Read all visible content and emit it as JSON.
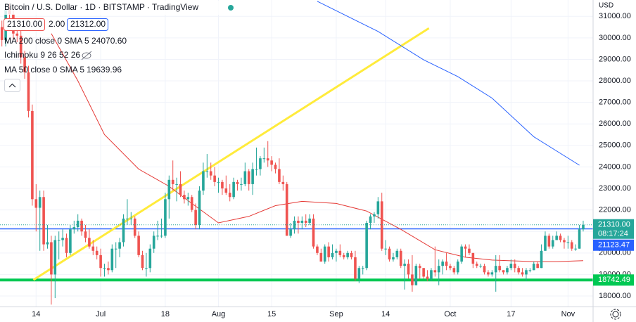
{
  "chart_data": {
    "type": "candlestick",
    "title": "Bitcoin / U.S. Dollar · 1D · BITSTAMP · TradingView",
    "quote": [
      "21310.00",
      "2.00",
      "21312.00"
    ],
    "currency": "USD",
    "up_color": "#26a69a",
    "down_color": "#ef5350",
    "grid": true,
    "xlim": [
      -0.5,
      155.6
    ],
    "ylim": [
      17510,
      31760
    ],
    "xticks": [
      {
        "value": 9,
        "label": "14"
      },
      {
        "value": 26,
        "label": "Jul"
      },
      {
        "value": 43,
        "label": "18"
      },
      {
        "value": 57,
        "label": "Aug"
      },
      {
        "value": 71,
        "label": "15"
      },
      {
        "value": 88,
        "label": "Sep"
      },
      {
        "value": 101,
        "label": "14"
      },
      {
        "value": 118,
        "label": "Oct"
      },
      {
        "value": 134,
        "label": "17"
      },
      {
        "value": 149,
        "label": "Nov"
      }
    ],
    "yticks": [
      {
        "value": 18000,
        "label": "18000.00"
      },
      {
        "value": 19000,
        "label": "19000.00"
      },
      {
        "value": 20000,
        "label": "20000.00"
      },
      {
        "value": 21000,
        "label": "21000.00"
      },
      {
        "value": 22000,
        "label": "22000.00"
      },
      {
        "value": 23000,
        "label": "23000.00"
      },
      {
        "value": 24000,
        "label": "24000.00"
      },
      {
        "value": 25000,
        "label": "25000.00"
      },
      {
        "value": 26000,
        "label": "26000.00"
      },
      {
        "value": 27000,
        "label": "27000.00"
      },
      {
        "value": 28000,
        "label": "28000.00"
      },
      {
        "value": 29000,
        "label": "29000.00"
      },
      {
        "value": 30000,
        "label": "30000.00"
      },
      {
        "value": 31000,
        "label": "31000.00"
      }
    ],
    "candles": [
      [
        30500,
        30800,
        29600,
        29900
      ],
      [
        29900,
        31600,
        29600,
        31300
      ],
      [
        31300,
        31600,
        30800,
        31100
      ],
      [
        31100,
        31400,
        29900,
        30200
      ],
      [
        30200,
        30500,
        29800,
        30100
      ],
      [
        30100,
        30400,
        28800,
        29100
      ],
      [
        29100,
        29400,
        28100,
        28400
      ],
      [
        28400,
        28700,
        26300,
        26600
      ],
      [
        26600,
        26900,
        22200,
        22500
      ],
      [
        22500,
        23200,
        21000,
        22100
      ],
      [
        22100,
        22900,
        20100,
        22600
      ],
      [
        22600,
        22900,
        20100,
        20400
      ],
      [
        20400,
        21300,
        20200,
        20500
      ],
      [
        20500,
        20800,
        17600,
        19000
      ],
      [
        19000,
        20800,
        17900,
        20600
      ],
      [
        20600,
        21000,
        19700,
        20600
      ],
      [
        20600,
        21100,
        20300,
        20700
      ],
      [
        20700,
        20900,
        19800,
        20000
      ],
      [
        20000,
        21300,
        19900,
        21100
      ],
      [
        21100,
        21500,
        20900,
        21200
      ],
      [
        21200,
        21800,
        21000,
        21500
      ],
      [
        21500,
        21600,
        20800,
        21000
      ],
      [
        21000,
        21300,
        20500,
        20700
      ],
      [
        20700,
        21100,
        20200,
        20300
      ],
      [
        20300,
        20600,
        19900,
        20100
      ],
      [
        20100,
        20300,
        19700,
        19900
      ],
      [
        19900,
        20200,
        18900,
        19300
      ],
      [
        19300,
        19500,
        18900,
        19300
      ],
      [
        19300,
        19600,
        19000,
        19200
      ],
      [
        19200,
        20400,
        19100,
        20200
      ],
      [
        20200,
        20500,
        19300,
        20200
      ],
      [
        20200,
        20700,
        19800,
        20500
      ],
      [
        20500,
        21800,
        20300,
        21600
      ],
      [
        21600,
        22500,
        21300,
        21600
      ],
      [
        21600,
        21900,
        21300,
        21600
      ],
      [
        21600,
        21700,
        20700,
        20800
      ],
      [
        20800,
        21000,
        19800,
        19900
      ],
      [
        19900,
        20100,
        19200,
        19300
      ],
      [
        19300,
        20000,
        18900,
        19300
      ],
      [
        19300,
        20400,
        19100,
        20200
      ],
      [
        20200,
        21000,
        20000,
        20800
      ],
      [
        20800,
        21500,
        20600,
        20800
      ],
      [
        20800,
        21600,
        20700,
        20800
      ],
      [
        20800,
        22800,
        20700,
        22500
      ],
      [
        22500,
        23600,
        21600,
        23400
      ],
      [
        23400,
        24300,
        22900,
        23200
      ],
      [
        23200,
        23500,
        22400,
        23200
      ],
      [
        23200,
        23800,
        22600,
        22700
      ],
      [
        22700,
        22900,
        22300,
        22500
      ],
      [
        22500,
        22800,
        22200,
        22600
      ],
      [
        22600,
        22700,
        21900,
        22000
      ],
      [
        22000,
        22300,
        21100,
        21300
      ],
      [
        21300,
        23100,
        21100,
        22900
      ],
      [
        22900,
        24200,
        22700,
        23800
      ],
      [
        23800,
        24600,
        23500,
        23800
      ],
      [
        23800,
        24200,
        23400,
        23600
      ],
      [
        23600,
        24000,
        23100,
        23300
      ],
      [
        23300,
        23500,
        22800,
        23300
      ],
      [
        23300,
        23400,
        22700,
        23000
      ],
      [
        23000,
        23600,
        22700,
        22800
      ],
      [
        22800,
        23200,
        22400,
        22600
      ],
      [
        22600,
        23500,
        22500,
        23300
      ],
      [
        23300,
        23400,
        22900,
        23200
      ],
      [
        23200,
        23500,
        22900,
        23200
      ],
      [
        23200,
        24200,
        23100,
        23800
      ],
      [
        23800,
        23900,
        22900,
        23200
      ],
      [
        23200,
        24200,
        22700,
        23900
      ],
      [
        23900,
        24900,
        23600,
        23900
      ],
      [
        23900,
        24500,
        23600,
        24400
      ],
      [
        24400,
        24900,
        24200,
        24400
      ],
      [
        24400,
        25200,
        24000,
        24300
      ],
      [
        24300,
        24500,
        23800,
        24100
      ],
      [
        24100,
        24200,
        23700,
        23900
      ],
      [
        23900,
        24400,
        23200,
        23300
      ],
      [
        23300,
        23600,
        22900,
        23200
      ],
      [
        23200,
        23300,
        20800,
        20800
      ],
      [
        20800,
        21400,
        20700,
        21100
      ],
      [
        21100,
        21700,
        20900,
        21500
      ],
      [
        21500,
        21700,
        20900,
        21400
      ],
      [
        21400,
        21700,
        21100,
        21500
      ],
      [
        21500,
        21800,
        21200,
        21400
      ],
      [
        21400,
        21800,
        21300,
        21600
      ],
      [
        21600,
        21800,
        20200,
        20300
      ],
      [
        20300,
        20400,
        19900,
        20000
      ],
      [
        20000,
        20200,
        19600,
        19600
      ],
      [
        19600,
        20400,
        19500,
        20300
      ],
      [
        20300,
        20500,
        19600,
        19800
      ],
      [
        19800,
        20400,
        19700,
        20000
      ],
      [
        20000,
        20200,
        19600,
        20100
      ],
      [
        20100,
        20400,
        19800,
        19900
      ],
      [
        19900,
        20000,
        19700,
        19800
      ],
      [
        19800,
        20100,
        19700,
        20000
      ],
      [
        20000,
        20100,
        19700,
        19800
      ],
      [
        19800,
        20100,
        18700,
        18800
      ],
      [
        18800,
        19400,
        18600,
        19300
      ],
      [
        19300,
        19400,
        19000,
        19300
      ],
      [
        19300,
        21500,
        19200,
        21400
      ],
      [
        21400,
        21800,
        21100,
        21700
      ],
      [
        21700,
        21900,
        21400,
        21800
      ],
      [
        21800,
        22600,
        21600,
        22400
      ],
      [
        22400,
        22800,
        20100,
        20200
      ],
      [
        20200,
        20600,
        19900,
        20200
      ],
      [
        20200,
        20300,
        19600,
        19700
      ],
      [
        19700,
        20000,
        19600,
        19800
      ],
      [
        19800,
        20200,
        19700,
        20100
      ],
      [
        20100,
        20200,
        19300,
        19400
      ],
      [
        19400,
        19700,
        18300,
        19500
      ],
      [
        19500,
        19700,
        18800,
        19000
      ],
      [
        19000,
        19900,
        18200,
        18500
      ],
      [
        18500,
        19500,
        18500,
        19400
      ],
      [
        19400,
        19500,
        18800,
        19300
      ],
      [
        19300,
        19300,
        18800,
        18900
      ],
      [
        18900,
        19200,
        18700,
        18800
      ],
      [
        18800,
        19300,
        18700,
        19200
      ],
      [
        19200,
        20300,
        18900,
        19100
      ],
      [
        19100,
        19700,
        18500,
        19400
      ],
      [
        19400,
        19700,
        19000,
        19600
      ],
      [
        19600,
        20000,
        19200,
        19400
      ],
      [
        19400,
        19500,
        19200,
        19300
      ],
      [
        19300,
        19400,
        19000,
        19100
      ],
      [
        19100,
        19700,
        19000,
        19600
      ],
      [
        19600,
        20400,
        19500,
        20300
      ],
      [
        20300,
        20400,
        19800,
        20200
      ],
      [
        20200,
        20400,
        19900,
        20000
      ],
      [
        20000,
        20000,
        19300,
        19500
      ],
      [
        19500,
        19600,
        19300,
        19400
      ],
      [
        19400,
        19500,
        19300,
        19400
      ],
      [
        19400,
        19500,
        19000,
        19100
      ],
      [
        19100,
        19200,
        18900,
        19000
      ],
      [
        19000,
        19200,
        18900,
        19100
      ],
      [
        19100,
        19900,
        18200,
        19400
      ],
      [
        19400,
        19900,
        19100,
        19200
      ],
      [
        19200,
        19200,
        19000,
        19100
      ],
      [
        19100,
        19400,
        19000,
        19300
      ],
      [
        19300,
        19700,
        19200,
        19500
      ],
      [
        19500,
        19700,
        19100,
        19300
      ],
      [
        19300,
        19400,
        19000,
        19100
      ],
      [
        19100,
        19300,
        18900,
        19000
      ],
      [
        19000,
        19300,
        18700,
        19200
      ],
      [
        19200,
        19300,
        19100,
        19200
      ],
      [
        19200,
        19600,
        19200,
        19500
      ],
      [
        19500,
        19600,
        19300,
        19300
      ],
      [
        19300,
        20400,
        19300,
        20100
      ],
      [
        20100,
        21000,
        20100,
        20800
      ],
      [
        20800,
        20900,
        20200,
        20300
      ],
      [
        20300,
        20800,
        20200,
        20600
      ],
      [
        20600,
        21000,
        20600,
        20800
      ],
      [
        20800,
        20900,
        20500,
        20600
      ],
      [
        20600,
        20700,
        20200,
        20500
      ],
      [
        20500,
        20800,
        20200,
        20500
      ],
      [
        20500,
        20600,
        20100,
        20200
      ],
      [
        20200,
        20400,
        20100,
        20200
      ],
      [
        20200,
        21300,
        20200,
        21100
      ],
      [
        21100,
        21500,
        21000,
        21310
      ]
    ],
    "series": [
      {
        "name": "MA 200 close 0 SMA 5",
        "last_label": "24070.60",
        "color": "#2962ff",
        "x": [
          83,
          99,
          111,
          120,
          129,
          140,
          152
        ],
        "values": [
          31700,
          30300,
          28980,
          28200,
          27200,
          25400,
          24080
        ]
      },
      {
        "name": "MA 50 close 0 SMA 5",
        "last_label": "19639.96",
        "color": "#e53935",
        "x": [
          13,
          20,
          27,
          36,
          44,
          50,
          57,
          65,
          72,
          79,
          88,
          96,
          105,
          114,
          122,
          129,
          140,
          146,
          153
        ],
        "values": [
          30200,
          28000,
          25500,
          23900,
          23100,
          22300,
          21400,
          21700,
          22200,
          22400,
          22300,
          21950,
          21100,
          20150,
          19800,
          19670,
          19600,
          19600,
          19640
        ]
      }
    ],
    "hidden_indicator": "Ichimoku 9 26 52 26",
    "trend_line": {
      "color": "#ffeb3b",
      "x": [
        8.3,
        112.4
      ],
      "values": [
        18750,
        30450
      ]
    },
    "last_price": {
      "value": 21310,
      "label": "21310.00",
      "countdown": "08:17:24",
      "color": "#26a69a"
    },
    "hlines": [
      {
        "value": 21123.47,
        "label": "21123.47",
        "color": "#2962ff"
      },
      {
        "value": 18742.49,
        "label": "18742.49",
        "color": "#00c853"
      }
    ]
  }
}
